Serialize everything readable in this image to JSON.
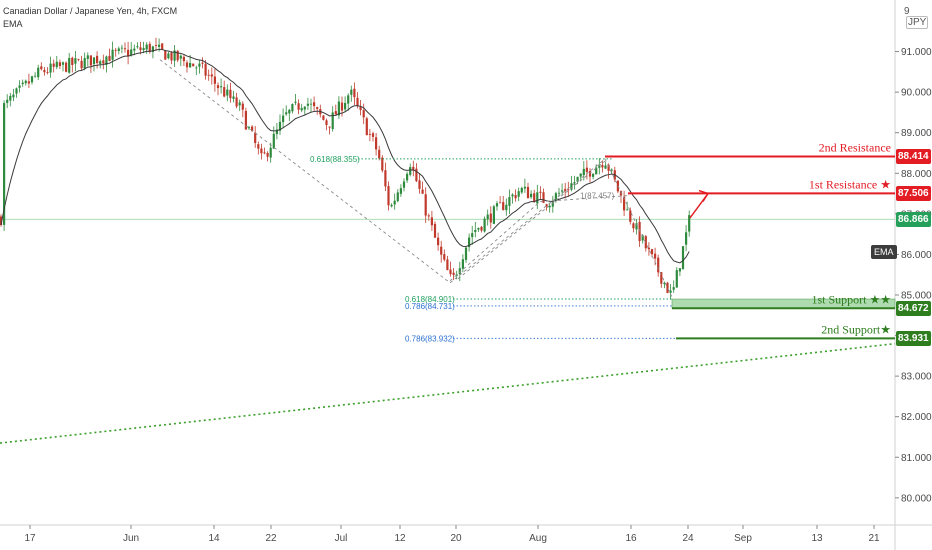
{
  "header": {
    "symbol_title": "Canadian Dollar / Japanese Yen, 4h, FXCM",
    "indicator": "EMA",
    "quote_currency": "JPY",
    "scale_top_label": "9"
  },
  "chart_data": {
    "type": "candlestick",
    "x_tick_labels": [
      "17",
      "Jun",
      "14",
      "22",
      "Jul",
      "12",
      "20",
      "Aug",
      "16",
      "24",
      "Sep",
      "13",
      "21"
    ],
    "y_tick_labels": [
      "91.000",
      "90.000",
      "89.000",
      "88.000",
      "87.000",
      "86.000",
      "85.000",
      "84.000",
      "83.000",
      "82.000",
      "81.000",
      "80.000"
    ],
    "y_ticks": [
      91,
      90,
      89,
      88,
      87,
      86,
      85,
      84,
      83,
      82,
      81,
      80
    ],
    "ylim": [
      79.7,
      92.0
    ],
    "last_price": "86.866",
    "price_path": [
      [
        "17",
        89.6
      ],
      [
        "17",
        90.5
      ],
      [
        "Jun",
        90.9
      ],
      [
        "Jun",
        91.1
      ],
      [
        "14",
        90.6
      ],
      [
        "14",
        89.6
      ],
      [
        "22",
        88.3
      ],
      [
        "22",
        89.4
      ],
      [
        "22",
        89.8
      ],
      [
        "Jul",
        89.2
      ],
      [
        "Jul",
        90.0
      ],
      [
        "12",
        88.5
      ],
      [
        "12",
        87.1
      ],
      [
        "12",
        88.3
      ],
      [
        "20",
        86.0
      ],
      [
        "20",
        85.3
      ],
      [
        "20",
        86.5
      ],
      [
        "Aug",
        87.6
      ],
      [
        "Aug",
        87.3
      ],
      [
        "16",
        88.35
      ],
      [
        "16",
        87.0
      ],
      [
        "24",
        84.95
      ],
      [
        "24",
        86.9
      ]
    ],
    "levels": [
      {
        "name": "2nd Resistance",
        "value": "88.414",
        "type": "resistance"
      },
      {
        "name": "1st Resistance ★",
        "value": "87.506",
        "type": "resistance"
      },
      {
        "name": "1st Support ★★",
        "value": "84.672",
        "type": "support"
      },
      {
        "name": "2nd Support★",
        "value": "83.931",
        "type": "support"
      }
    ],
    "fib_labels": [
      {
        "label": "0.618(88.355)",
        "value": 88.355
      },
      {
        "label": "1(87.457)",
        "value": 87.457
      },
      {
        "label": "0.618(84.901)",
        "value": 84.901
      },
      {
        "label": "0.786(84.731)",
        "value": 84.731
      },
      {
        "label": "0.786(83.932)",
        "value": 83.932
      }
    ],
    "ema_badge": "EMA",
    "colors": {
      "up": "#26a69a",
      "down": "#ef5350",
      "candle_up": "#2e8b3d",
      "candle_down": "#c0392b",
      "resistance": "#e31b23",
      "support": "#2e7d1f",
      "last_price": "#25a05a",
      "ema": "#3a3a3a",
      "fib_green": "#20a060",
      "fib_blue": "#2a6fd0",
      "trendline": "#3aa02a"
    }
  }
}
